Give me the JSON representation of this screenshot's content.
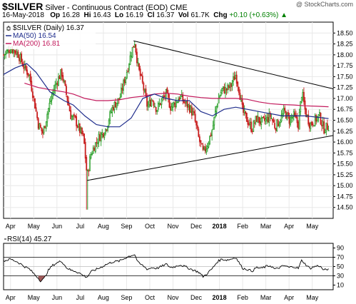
{
  "header": {
    "symbol": "$SILVER",
    "description": "Silver - Continuous Contract (EOD)",
    "exchange": "CME",
    "date": "16-May-2018",
    "open_label": "Op",
    "open": "16.28",
    "high_label": "Hi",
    "high": "16.43",
    "low_label": "Lo",
    "low": "16.19",
    "close_label": "Cl",
    "close": "16.37",
    "volume_label": "Vol",
    "volume": "61.7K",
    "change_label": "Chg",
    "change": "+0.10 (+0.63%)",
    "source": "@ StockCharts.com",
    "up_triangle": "▲"
  },
  "colors": {
    "up": "#1e9a1e",
    "down": "#c81e1e",
    "ma50": "#1f2d8c",
    "ma200": "#c2185b",
    "rsi": "#000000",
    "rsi_fill": "#a05a5a",
    "trendline": "#000000",
    "grid": "#e8e8e8"
  },
  "chart_data": [
    {
      "type": "candlestick",
      "legend": [
        {
          "label": "$SILVER (Daily) 16.37",
          "style": "candle"
        },
        {
          "label": "MA(50) 16.54",
          "color": "#1f2d8c"
        },
        {
          "label": "MA(200) 16.81",
          "color": "#c2185b"
        }
      ],
      "ylim": [
        14.25,
        18.75
      ],
      "y_ticks": [
        "14.50",
        "14.75",
        "15.00",
        "15.25",
        "15.50",
        "15.75",
        "16.00",
        "16.25",
        "16.50",
        "16.75",
        "17.00",
        "17.25",
        "17.50",
        "17.75",
        "18.00",
        "18.25",
        "18.50"
      ],
      "x_ticks": [
        {
          "label": "Apr",
          "t": 0.3
        },
        {
          "label": "May",
          "t": 1.3
        },
        {
          "label": "Jun",
          "t": 2.3
        },
        {
          "label": "Jul",
          "t": 3.3
        },
        {
          "label": "Aug",
          "t": 4.3
        },
        {
          "label": "Sep",
          "t": 5.3
        },
        {
          "label": "Oct",
          "t": 6.3
        },
        {
          "label": "Nov",
          "t": 7.3
        },
        {
          "label": "Dec",
          "t": 8.3
        },
        {
          "label": "2018",
          "t": 9.3,
          "bold": true
        },
        {
          "label": "Feb",
          "t": 10.3
        },
        {
          "label": "Mar",
          "t": 11.3
        },
        {
          "label": "Apr",
          "t": 12.3
        },
        {
          "label": "May",
          "t": 13.3
        }
      ],
      "t_range": [
        0,
        14.2
      ],
      "close_path": [
        [
          0,
          18.0
        ],
        [
          0.3,
          18.15
        ],
        [
          0.6,
          18.05
        ],
        [
          0.9,
          17.7
        ],
        [
          1.1,
          17.55
        ],
        [
          1.3,
          17.0
        ],
        [
          1.5,
          16.4
        ],
        [
          1.7,
          16.2
        ],
        [
          1.9,
          16.7
        ],
        [
          2.1,
          17.1
        ],
        [
          2.3,
          17.4
        ],
        [
          2.5,
          17.6
        ],
        [
          2.7,
          17.1
        ],
        [
          2.9,
          16.6
        ],
        [
          3.1,
          16.5
        ],
        [
          3.25,
          16.3
        ],
        [
          3.45,
          16.1
        ],
        [
          3.6,
          15.2
        ],
        [
          3.75,
          15.7
        ],
        [
          3.9,
          15.9
        ],
        [
          4.1,
          16.1
        ],
        [
          4.4,
          16.3
        ],
        [
          4.7,
          16.8
        ],
        [
          5.0,
          17.0
        ],
        [
          5.3,
          17.6
        ],
        [
          5.5,
          18.05
        ],
        [
          5.65,
          18.3
        ],
        [
          5.8,
          17.7
        ],
        [
          6.0,
          17.3
        ],
        [
          6.2,
          16.8
        ],
        [
          6.4,
          17.0
        ],
        [
          6.6,
          16.75
        ],
        [
          6.8,
          16.95
        ],
        [
          7.0,
          17.1
        ],
        [
          7.2,
          16.8
        ],
        [
          7.4,
          16.9
        ],
        [
          7.6,
          17.05
        ],
        [
          7.8,
          16.9
        ],
        [
          8.0,
          16.8
        ],
        [
          8.2,
          16.6
        ],
        [
          8.4,
          16.1
        ],
        [
          8.6,
          15.75
        ],
        [
          8.75,
          15.9
        ],
        [
          9.0,
          16.3
        ],
        [
          9.2,
          16.9
        ],
        [
          9.4,
          17.2
        ],
        [
          9.6,
          17.2
        ],
        [
          9.8,
          17.3
        ],
        [
          10.0,
          17.55
        ],
        [
          10.15,
          17.2
        ],
        [
          10.3,
          16.7
        ],
        [
          10.5,
          16.5
        ],
        [
          10.7,
          16.3
        ],
        [
          10.9,
          16.55
        ],
        [
          11.1,
          16.45
        ],
        [
          11.3,
          16.5
        ],
        [
          11.5,
          16.6
        ],
        [
          11.7,
          16.35
        ],
        [
          11.9,
          16.5
        ],
        [
          12.1,
          16.7
        ],
        [
          12.3,
          16.5
        ],
        [
          12.5,
          16.6
        ],
        [
          12.7,
          16.4
        ],
        [
          12.85,
          17.15
        ],
        [
          13.0,
          16.7
        ],
        [
          13.2,
          16.4
        ],
        [
          13.4,
          16.5
        ],
        [
          13.6,
          16.6
        ],
        [
          13.8,
          16.3
        ],
        [
          14.0,
          16.37
        ]
      ],
      "spike_low": [
        3.6,
        14.45
      ],
      "ma50": [
        [
          0,
          17.55
        ],
        [
          0.5,
          17.7
        ],
        [
          1.0,
          17.8
        ],
        [
          1.4,
          17.6
        ],
        [
          2.0,
          17.15
        ],
        [
          2.6,
          16.95
        ],
        [
          3.0,
          16.85
        ],
        [
          3.5,
          16.6
        ],
        [
          4.0,
          16.4
        ],
        [
          4.5,
          16.35
        ],
        [
          5.0,
          16.35
        ],
        [
          5.5,
          16.55
        ],
        [
          6.0,
          17.0
        ],
        [
          6.5,
          17.1
        ],
        [
          7.0,
          17.0
        ],
        [
          7.5,
          16.95
        ],
        [
          8.0,
          16.95
        ],
        [
          8.5,
          16.7
        ],
        [
          9.0,
          16.6
        ],
        [
          9.5,
          16.75
        ],
        [
          10.0,
          16.8
        ],
        [
          10.5,
          16.75
        ],
        [
          11.0,
          16.7
        ],
        [
          11.5,
          16.65
        ],
        [
          12.0,
          16.6
        ],
        [
          12.5,
          16.6
        ],
        [
          13.0,
          16.6
        ],
        [
          13.5,
          16.57
        ],
        [
          14.0,
          16.54
        ]
      ],
      "ma200": [
        [
          0.9,
          17.35
        ],
        [
          1.5,
          17.25
        ],
        [
          2.0,
          17.2
        ],
        [
          2.6,
          17.15
        ],
        [
          3.0,
          17.1
        ],
        [
          3.5,
          17.0
        ],
        [
          4.0,
          16.95
        ],
        [
          4.5,
          16.95
        ],
        [
          5.0,
          16.97
        ],
        [
          5.5,
          17.02
        ],
        [
          6.0,
          17.05
        ],
        [
          6.5,
          17.1
        ],
        [
          7.0,
          17.12
        ],
        [
          7.5,
          17.1
        ],
        [
          8.0,
          17.05
        ],
        [
          8.5,
          17.02
        ],
        [
          9.0,
          17.0
        ],
        [
          9.5,
          17.0
        ],
        [
          10.0,
          17.0
        ],
        [
          10.5,
          16.98
        ],
        [
          11.0,
          16.92
        ],
        [
          11.5,
          16.88
        ],
        [
          12.0,
          16.86
        ],
        [
          12.5,
          16.85
        ],
        [
          13.0,
          16.83
        ],
        [
          13.5,
          16.82
        ],
        [
          14.0,
          16.81
        ]
      ],
      "trendlines": [
        {
          "from": [
            3.6,
            15.12
          ],
          "to": [
            14.2,
            16.15
          ]
        },
        {
          "from": [
            5.6,
            18.32
          ],
          "to": [
            14.2,
            17.22
          ]
        }
      ]
    },
    {
      "type": "line",
      "legend": [
        {
          "label": "RSI(14) 45.27"
        }
      ],
      "ylim": [
        0,
        100
      ],
      "y_ticks": [
        "10",
        "30",
        "50",
        "70",
        "90"
      ],
      "reference_lines": [
        30,
        50,
        70
      ],
      "rsi": [
        [
          0,
          62
        ],
        [
          0.3,
          66
        ],
        [
          0.6,
          60
        ],
        [
          0.9,
          50
        ],
        [
          1.1,
          45
        ],
        [
          1.3,
          35
        ],
        [
          1.5,
          25
        ],
        [
          1.6,
          19
        ],
        [
          1.75,
          24
        ],
        [
          1.9,
          40
        ],
        [
          2.1,
          52
        ],
        [
          2.3,
          58
        ],
        [
          2.5,
          62
        ],
        [
          2.7,
          48
        ],
        [
          2.9,
          42
        ],
        [
          3.1,
          40
        ],
        [
          3.3,
          35
        ],
        [
          3.45,
          30
        ],
        [
          3.6,
          27
        ],
        [
          3.75,
          38
        ],
        [
          3.9,
          42
        ],
        [
          4.1,
          46
        ],
        [
          4.4,
          54
        ],
        [
          4.7,
          60
        ],
        [
          5.0,
          62
        ],
        [
          5.3,
          70
        ],
        [
          5.5,
          74
        ],
        [
          5.65,
          76
        ],
        [
          5.8,
          58
        ],
        [
          6.0,
          52
        ],
        [
          6.2,
          44
        ],
        [
          6.4,
          48
        ],
        [
          6.6,
          46
        ],
        [
          6.8,
          50
        ],
        [
          7.0,
          55
        ],
        [
          7.2,
          48
        ],
        [
          7.4,
          50
        ],
        [
          7.6,
          54
        ],
        [
          7.8,
          50
        ],
        [
          8.0,
          46
        ],
        [
          8.2,
          42
        ],
        [
          8.4,
          38
        ],
        [
          8.6,
          28
        ],
        [
          8.75,
          34
        ],
        [
          9.0,
          46
        ],
        [
          9.2,
          60
        ],
        [
          9.4,
          66
        ],
        [
          9.6,
          64
        ],
        [
          9.8,
          66
        ],
        [
          10.0,
          70
        ],
        [
          10.15,
          58
        ],
        [
          10.3,
          46
        ],
        [
          10.5,
          44
        ],
        [
          10.7,
          40
        ],
        [
          10.9,
          48
        ],
        [
          11.1,
          46
        ],
        [
          11.3,
          50
        ],
        [
          11.5,
          52
        ],
        [
          11.7,
          44
        ],
        [
          11.9,
          48
        ],
        [
          12.1,
          52
        ],
        [
          12.3,
          48
        ],
        [
          12.5,
          50
        ],
        [
          12.7,
          46
        ],
        [
          12.85,
          64
        ],
        [
          13.0,
          55
        ],
        [
          13.2,
          46
        ],
        [
          13.4,
          50
        ],
        [
          13.6,
          52
        ],
        [
          13.8,
          42
        ],
        [
          14.0,
          45.27
        ]
      ],
      "oversold_fill_range": [
        1.45,
        1.8
      ]
    }
  ]
}
